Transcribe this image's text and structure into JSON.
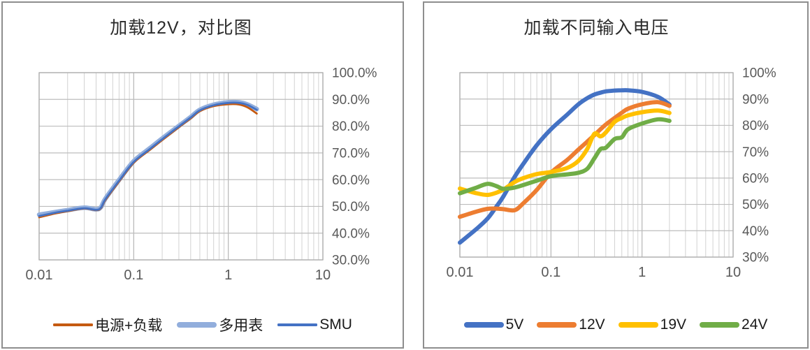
{
  "page_background": "#ffffff",
  "chart_data": [
    {
      "type": "line",
      "title": "加载12V，对比图",
      "xlabel": "",
      "ylabel": "",
      "x_scale": "log",
      "xlim": [
        0.01,
        10
      ],
      "ylim": [
        30,
        100
      ],
      "grid": "major-and-log-minor",
      "legend_position": "bottom",
      "x_tick_values": [
        0.01,
        0.1,
        1,
        10
      ],
      "x_tick_labels": [
        "0.01",
        "0.1",
        "1",
        "10"
      ],
      "y_tick_values": [
        100,
        90,
        80,
        70,
        60,
        50,
        40,
        30
      ],
      "y_tick_labels": [
        "100.0%",
        "90.0%",
        "80.0%",
        "70.0%",
        "60.0%",
        "50.0%",
        "40.0%",
        "30.0%"
      ],
      "x": [
        0.01,
        0.015,
        0.02,
        0.03,
        0.04,
        0.045,
        0.05,
        0.07,
        0.1,
        0.15,
        0.2,
        0.3,
        0.4,
        0.5,
        0.7,
        1,
        1.3,
        1.6,
        2
      ],
      "series": [
        {
          "name": "电源+负载",
          "color": "#C55A11",
          "width": 2.8,
          "values": [
            45.9,
            47.4,
            48.2,
            49.2,
            48.6,
            49.3,
            52.3,
            59.3,
            66.3,
            71.3,
            74.8,
            79.6,
            82.9,
            85.6,
            87.5,
            88.2,
            88.1,
            87.0,
            84.7
          ]
        },
        {
          "name": "多用表",
          "color": "#92AEDC",
          "width": 6.5,
          "values": [
            46.9,
            47.9,
            48.6,
            49.5,
            48.9,
            49.7,
            52.8,
            59.9,
            66.9,
            71.9,
            75.4,
            80.1,
            83.4,
            86.1,
            88.0,
            88.9,
            88.9,
            88.1,
            86.4
          ]
        },
        {
          "name": "SMU",
          "color": "#4472C4",
          "width": 2.8,
          "values": [
            46.4,
            47.7,
            48.4,
            49.3,
            48.7,
            49.5,
            52.6,
            59.6,
            66.6,
            71.6,
            75.1,
            79.9,
            83.2,
            85.9,
            87.8,
            88.7,
            88.7,
            87.9,
            86.1
          ]
        }
      ]
    },
    {
      "type": "line",
      "title": "加载不同输入电压",
      "xlabel": "",
      "ylabel": "",
      "x_scale": "log",
      "xlim": [
        0.01,
        10
      ],
      "ylim": [
        30,
        100
      ],
      "grid": "major-and-log-minor",
      "legend_position": "bottom",
      "x_tick_values": [
        0.01,
        0.1,
        1,
        10
      ],
      "x_tick_labels": [
        "0.01",
        "0.1",
        "1",
        "10"
      ],
      "y_tick_values": [
        100,
        90,
        80,
        70,
        60,
        50,
        40,
        30
      ],
      "y_tick_labels": [
        "100%",
        "90%",
        "80%",
        "70%",
        "60%",
        "50%",
        "40%",
        "30%"
      ],
      "x": [
        0.01,
        0.015,
        0.02,
        0.025,
        0.03,
        0.04,
        0.05,
        0.07,
        0.1,
        0.15,
        0.2,
        0.25,
        0.3,
        0.35,
        0.4,
        0.5,
        0.6,
        0.7,
        1,
        1.5,
        2
      ],
      "series": [
        {
          "name": "5V",
          "color": "#4472C4",
          "width": 6,
          "values": [
            35.5,
            40.5,
            44.5,
            49.0,
            53.0,
            60.5,
            65.5,
            72.5,
            78.5,
            84.0,
            88.0,
            90.3,
            91.7,
            92.4,
            92.9,
            93.2,
            93.3,
            93.3,
            92.7,
            90.8,
            87.9
          ]
        },
        {
          "name": "12V",
          "color": "#ED7D31",
          "width": 6,
          "values": [
            45.3,
            47.2,
            48.3,
            48.4,
            48.2,
            47.8,
            50.5,
            55.5,
            62.0,
            66.8,
            70.8,
            73.8,
            76.3,
            78.5,
            80.3,
            82.8,
            84.8,
            86.3,
            88.0,
            88.8,
            87.4
          ]
        },
        {
          "name": "19V",
          "color": "#FFC000",
          "width": 6,
          "values": [
            56.0,
            54.3,
            53.6,
            54.4,
            55.6,
            58.5,
            60.0,
            61.5,
            62.3,
            63.8,
            66.5,
            71.0,
            76.8,
            75.8,
            77.3,
            81.3,
            82.8,
            83.8,
            85.0,
            85.6,
            84.7
          ]
        },
        {
          "name": "24V",
          "color": "#70AD47",
          "width": 6,
          "values": [
            54.2,
            56.3,
            57.8,
            57.0,
            55.9,
            56.4,
            57.4,
            59.0,
            60.7,
            61.4,
            62.0,
            63.5,
            67.5,
            71.0,
            71.5,
            74.8,
            75.5,
            78.5,
            80.7,
            82.3,
            81.7
          ]
        }
      ]
    }
  ]
}
